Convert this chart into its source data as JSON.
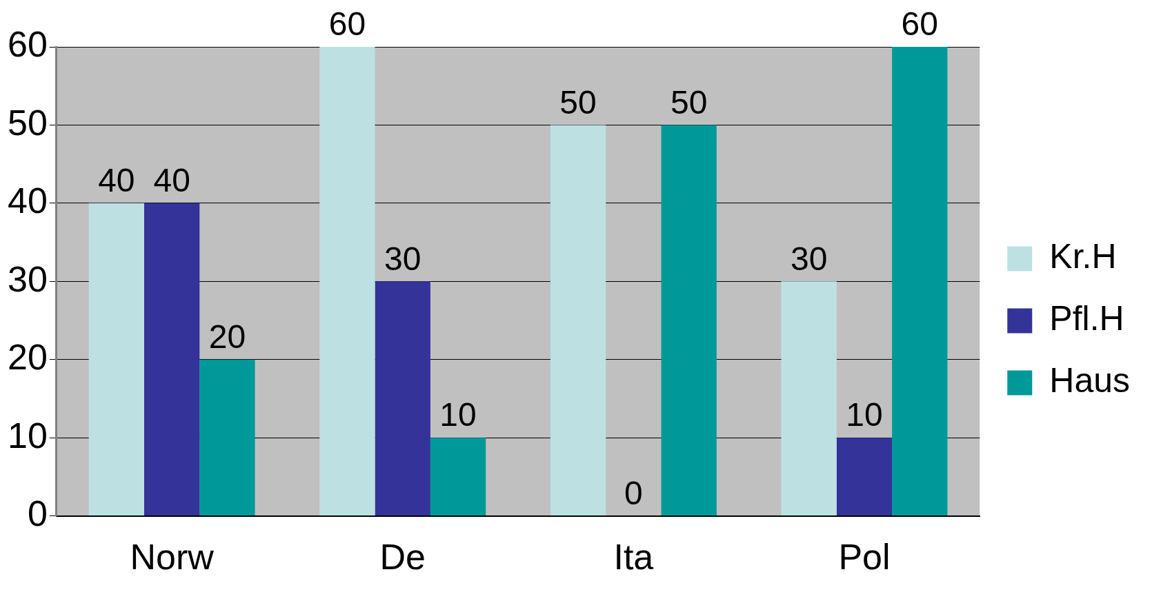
{
  "chart_data": {
    "type": "bar",
    "categories": [
      "Norw",
      "De",
      "Ita",
      "Pol"
    ],
    "series": [
      {
        "name": "Kr.H",
        "color": "#bde0e3",
        "values": [
          40,
          60,
          50,
          30
        ]
      },
      {
        "name": "Pfl.H",
        "color": "#333399",
        "values": [
          40,
          30,
          0,
          10
        ]
      },
      {
        "name": "Haus",
        "color": "#009999",
        "values": [
          20,
          10,
          50,
          60
        ]
      }
    ],
    "ylim": [
      0,
      60
    ],
    "yticks": [
      0,
      10,
      20,
      30,
      40,
      50,
      60
    ],
    "grid": "y",
    "legend": "right",
    "data_labels": true
  }
}
